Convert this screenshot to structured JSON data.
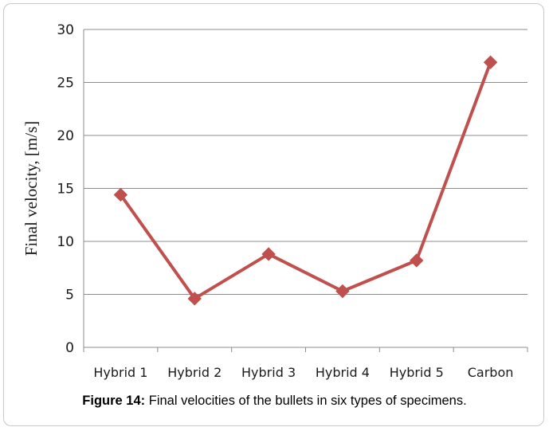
{
  "chart_data": {
    "type": "line",
    "categories": [
      "Hybrid 1",
      "Hybrid 2",
      "Hybrid 3",
      "Hybrid 4",
      "Hybrid 5",
      "Carbon"
    ],
    "series": [
      {
        "values": [
          14.4,
          4.6,
          8.8,
          5.3,
          8.2,
          26.9
        ],
        "color": "#c0504d",
        "marker": "diamond"
      }
    ],
    "ylabel": "Final velocity, [m/s]",
    "xlabel": "",
    "ylim": [
      0,
      30
    ],
    "yticks": [
      0,
      5,
      10,
      15,
      20,
      25,
      30
    ],
    "grid": true
  },
  "caption": {
    "label": "Figure 14:",
    "text": " Final velocities of the bullets in six types of specimens."
  }
}
